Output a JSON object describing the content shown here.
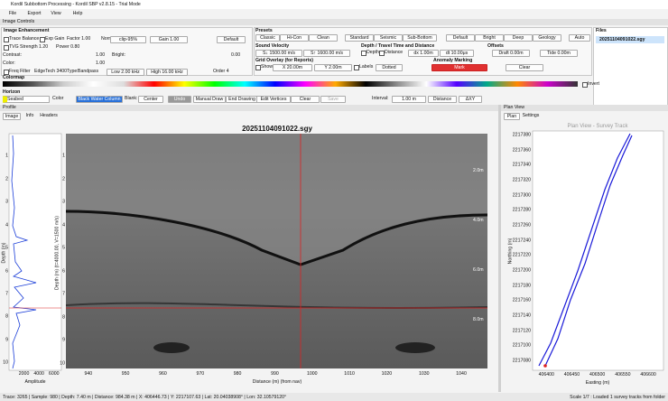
{
  "window": {
    "title": "Kordil Subbottom Processing - Kordil SBP v2.8.15 - Trial Mode",
    "menu": [
      "File",
      "Export",
      "View",
      "Help"
    ]
  },
  "image_controls": {
    "title": "Image Controls",
    "enhancement": {
      "title": "Image Enhancement",
      "trace_balance": "Trace Balance",
      "exp_gain": "Exp Gain",
      "factor": "Factor 1.00",
      "norm": "Norm:",
      "clip": "clip-95%",
      "gain": "Gain 1.00",
      "default": "Default",
      "tvg": "TVG",
      "strength": "Strength 1.20",
      "power": "Power 0.80",
      "contrast": "Contrast:",
      "contrast_value": "1.00",
      "bright": "Bright:",
      "bright_value": "0.00",
      "color": "Color:",
      "color_value": "1.00",
      "freq_filter": "Freq Filter",
      "filter_name": "EdgeTech 3400",
      "type": "Type:",
      "type_value": "Bandpass",
      "low": "Low 2.00 kHz",
      "high": "High 16.00 kHz",
      "order": "Order 4"
    },
    "presets": {
      "title": "Presets",
      "buttons": [
        "Classic",
        "Hi-Con",
        "Clean",
        "Standard",
        "Seismic",
        "Sub-Bottom",
        "Default",
        "Bright",
        "Deep",
        "Geology",
        "Auto"
      ]
    },
    "sound_velocity": {
      "title": "Sound Velocity",
      "down": "S↓ 1500.00 m/s",
      "up": "S↑ 1600.00 m/s"
    },
    "depth_time": {
      "title": "Depth / Travel Time and Distance",
      "depth": "Depth",
      "distance": "Distance",
      "dx": "dx 1.00m",
      "dt": "dt 10.00μs"
    },
    "anomaly": {
      "title": "Anomaly Marking",
      "mark": "Mark",
      "clear": "Clear"
    },
    "offsets": {
      "title": "Offsets",
      "draft": "Draft 0.00m",
      "tide": "Tide 0.00m"
    },
    "grid_overlay": {
      "title": "Grid Overlay (for Reports)",
      "show": "Show",
      "x": "X 20.00m",
      "y": "Y 2.00m",
      "labels": "Labels",
      "style": "Dotted"
    },
    "colormap": {
      "title": "Colormap",
      "invert": "Invert"
    },
    "horizon": {
      "title": "Horizon",
      "layer": "Seabed",
      "color": "Color",
      "water": "Black Water Column",
      "blank": "Blank:",
      "blank_value": "Center",
      "undo": "Undo",
      "manual": "Manual Draw",
      "end": "End Drawing",
      "edit": "Edit Vertices",
      "clear": "Clear",
      "save": "Save",
      "interval": "Interval:",
      "interval_value": "1.00 m",
      "distance": "Distance",
      "dxy": "ΔXY"
    }
  },
  "files": {
    "title": "Files",
    "items": [
      "20251104091022.sgy"
    ]
  },
  "profile": {
    "title": "Profile",
    "tabs": [
      "Image",
      "Info",
      "Headers"
    ],
    "image_title": "20251104091022.sgy",
    "x_label": "Distance (m) (from nav)",
    "y_label": "Depth (m) (t=4000.00, V=1500 m/s)",
    "xlim": [
      934,
      1047
    ],
    "xticks": [
      940,
      950,
      960,
      970,
      980,
      990,
      1000,
      1010,
      1020,
      1030,
      1040
    ],
    "ylim": [
      0,
      10.2
    ],
    "yticks": [
      1,
      2,
      3,
      4,
      5,
      6,
      7,
      8,
      9,
      10
    ],
    "grid_labels": [
      "2.0m",
      "4.0m",
      "6.0m",
      "8.0m"
    ],
    "amplitude": {
      "x_label": "Amplitude",
      "y_label": "Depth (m)",
      "xlim": [
        0,
        7000
      ],
      "xticks": [
        2000,
        4000,
        6000
      ],
      "ylim": [
        0,
        10.3
      ],
      "yticks": [
        1,
        2,
        3,
        4,
        5,
        6,
        7,
        8,
        9,
        10
      ]
    }
  },
  "plan_view": {
    "title": "Plan View",
    "tabs": [
      "Plan",
      "Settings"
    ],
    "chart_title": "Plan View - Survey Track",
    "x_label": "Easting (m)",
    "y_label": "Northing (m)",
    "xlim": [
      406373,
      406630
    ],
    "xticks": [
      406400,
      406450,
      406500,
      406550,
      406600
    ],
    "ylim": [
      2217068,
      2217386
    ],
    "yticks": [
      2217080,
      2217100,
      2217120,
      2217140,
      2217160,
      2217180,
      2217200,
      2217220,
      2217240,
      2217260,
      2217280,
      2217300,
      2217320,
      2217340,
      2217360,
      2217380
    ]
  },
  "status": {
    "left": "Trace: 3265 | Sample: 980 | Depth: 7.40 m | Distance: 984.38 m | X: 406446.73 | Y: 2217107.63 | Lat: 20.04038908° | Lon: 32.10579120°",
    "right": "Scale 1/7 : Loaded 1 survey tracks from folder"
  }
}
